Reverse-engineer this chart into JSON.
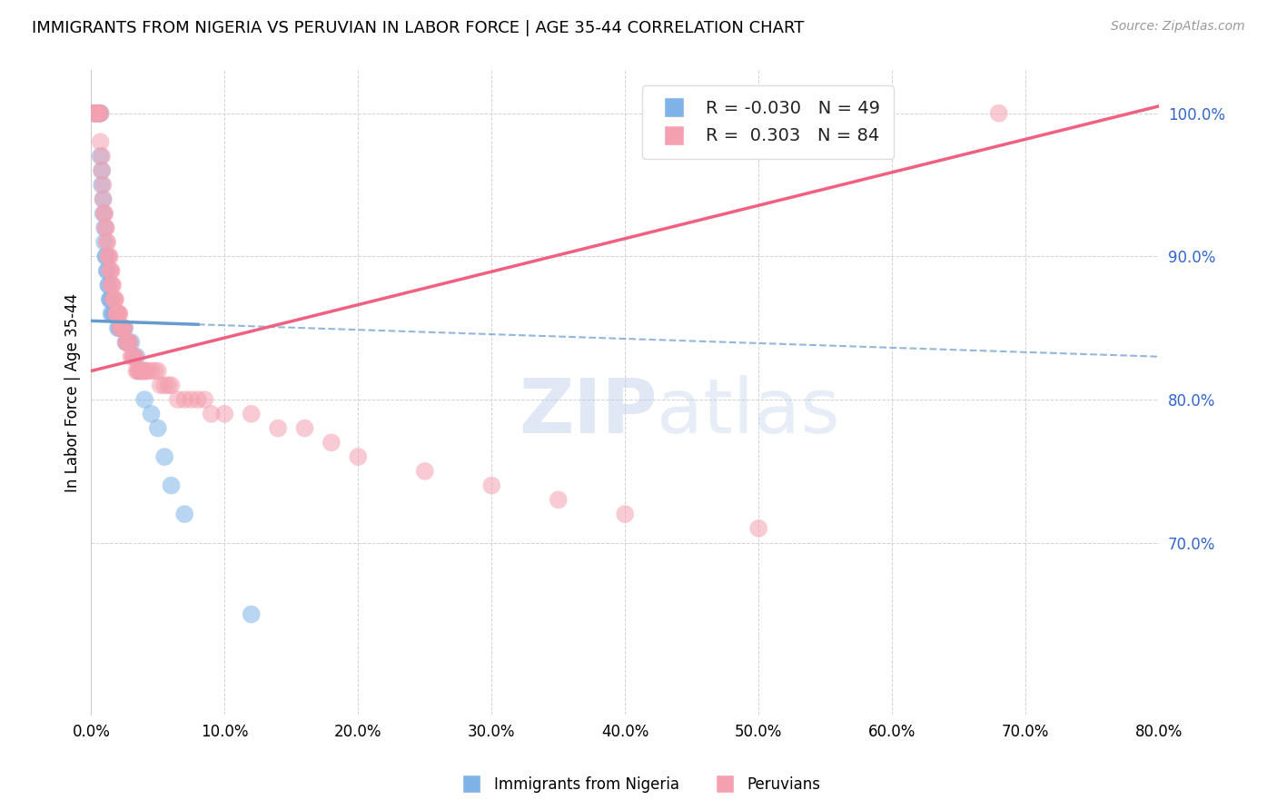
{
  "title": "IMMIGRANTS FROM NIGERIA VS PERUVIAN IN LABOR FORCE | AGE 35-44 CORRELATION CHART",
  "source": "Source: ZipAtlas.com",
  "ylabel": "In Labor Force | Age 35-44",
  "xlim": [
    0.0,
    0.8
  ],
  "ylim": [
    0.58,
    1.03
  ],
  "yticks": [
    0.7,
    0.8,
    0.9,
    1.0
  ],
  "xticks": [
    0.0,
    0.1,
    0.2,
    0.3,
    0.4,
    0.5,
    0.6,
    0.7,
    0.8
  ],
  "legend_r_nigeria": "-0.030",
  "legend_n_nigeria": "49",
  "legend_r_peruvian": "0.303",
  "legend_n_peruvian": "84",
  "color_nigeria": "#7fb3e8",
  "color_peruvian": "#f4a0b0",
  "line_nigeria": "#6699cc",
  "line_peruvian": "#f06080",
  "watermark_zip": "ZIP",
  "watermark_atlas": "atlas",
  "nigeria_x": [
    0.002,
    0.003,
    0.004,
    0.005,
    0.006,
    0.006,
    0.007,
    0.007,
    0.008,
    0.008,
    0.009,
    0.009,
    0.01,
    0.01,
    0.011,
    0.011,
    0.012,
    0.012,
    0.013,
    0.013,
    0.014,
    0.014,
    0.015,
    0.015,
    0.016,
    0.017,
    0.018,
    0.019,
    0.02,
    0.021,
    0.022,
    0.023,
    0.024,
    0.025,
    0.026,
    0.027,
    0.028,
    0.03,
    0.032,
    0.034,
    0.036,
    0.038,
    0.04,
    0.045,
    0.05,
    0.055,
    0.06,
    0.07,
    0.12
  ],
  "nigeria_y": [
    1.0,
    1.0,
    1.0,
    1.0,
    1.0,
    1.0,
    1.0,
    0.97,
    0.96,
    0.95,
    0.94,
    0.93,
    0.92,
    0.91,
    0.9,
    0.9,
    0.89,
    0.89,
    0.88,
    0.88,
    0.87,
    0.87,
    0.87,
    0.86,
    0.86,
    0.86,
    0.86,
    0.86,
    0.85,
    0.85,
    0.85,
    0.85,
    0.85,
    0.85,
    0.84,
    0.84,
    0.84,
    0.84,
    0.83,
    0.83,
    0.82,
    0.82,
    0.8,
    0.79,
    0.78,
    0.76,
    0.74,
    0.72,
    0.65
  ],
  "peruvian_x": [
    0.002,
    0.003,
    0.004,
    0.005,
    0.006,
    0.006,
    0.007,
    0.007,
    0.008,
    0.008,
    0.009,
    0.009,
    0.01,
    0.01,
    0.011,
    0.011,
    0.012,
    0.012,
    0.013,
    0.013,
    0.014,
    0.014,
    0.015,
    0.015,
    0.015,
    0.016,
    0.016,
    0.017,
    0.017,
    0.018,
    0.018,
    0.019,
    0.019,
    0.02,
    0.02,
    0.021,
    0.021,
    0.022,
    0.022,
    0.023,
    0.024,
    0.025,
    0.026,
    0.027,
    0.028,
    0.029,
    0.03,
    0.031,
    0.032,
    0.033,
    0.034,
    0.035,
    0.036,
    0.037,
    0.038,
    0.039,
    0.04,
    0.041,
    0.042,
    0.045,
    0.048,
    0.05,
    0.052,
    0.055,
    0.058,
    0.06,
    0.065,
    0.07,
    0.075,
    0.08,
    0.085,
    0.09,
    0.1,
    0.12,
    0.14,
    0.16,
    0.18,
    0.2,
    0.25,
    0.3,
    0.35,
    0.4,
    0.5,
    0.68
  ],
  "peruvian_y": [
    1.0,
    1.0,
    1.0,
    1.0,
    1.0,
    1.0,
    1.0,
    0.98,
    0.97,
    0.96,
    0.95,
    0.94,
    0.93,
    0.93,
    0.92,
    0.92,
    0.91,
    0.91,
    0.9,
    0.9,
    0.9,
    0.89,
    0.89,
    0.89,
    0.88,
    0.88,
    0.88,
    0.87,
    0.87,
    0.87,
    0.87,
    0.86,
    0.86,
    0.86,
    0.86,
    0.86,
    0.86,
    0.85,
    0.85,
    0.85,
    0.85,
    0.85,
    0.84,
    0.84,
    0.84,
    0.84,
    0.83,
    0.83,
    0.83,
    0.83,
    0.82,
    0.82,
    0.82,
    0.82,
    0.82,
    0.82,
    0.82,
    0.82,
    0.82,
    0.82,
    0.82,
    0.82,
    0.81,
    0.81,
    0.81,
    0.81,
    0.8,
    0.8,
    0.8,
    0.8,
    0.8,
    0.79,
    0.79,
    0.79,
    0.78,
    0.78,
    0.77,
    0.76,
    0.75,
    0.74,
    0.73,
    0.72,
    0.71,
    1.0
  ],
  "line_nigeria_x0": 0.0,
  "line_nigeria_x1": 0.8,
  "line_nigeria_y0": 0.855,
  "line_nigeria_y1": 0.83,
  "line_nigeria_solid_end": 0.08,
  "line_peruvian_x0": 0.0,
  "line_peruvian_x1": 0.8,
  "line_peruvian_y0": 0.82,
  "line_peruvian_y1": 1.005
}
